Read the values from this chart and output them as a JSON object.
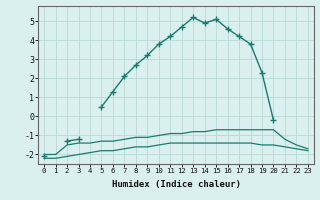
{
  "xlabel": "Humidex (Indice chaleur)",
  "x": [
    0,
    1,
    2,
    3,
    4,
    5,
    6,
    7,
    8,
    9,
    10,
    11,
    12,
    13,
    14,
    15,
    16,
    17,
    18,
    19,
    20,
    21,
    22,
    23
  ],
  "line_max": [
    -2.1,
    null,
    -1.3,
    -1.2,
    null,
    0.5,
    1.3,
    2.1,
    2.7,
    3.2,
    3.8,
    4.2,
    4.7,
    5.2,
    4.9,
    5.1,
    4.6,
    4.2,
    3.8,
    2.3,
    -0.2,
    null,
    null,
    null
  ],
  "line_mean": [
    -2.0,
    -2.0,
    -1.5,
    -1.4,
    -1.4,
    -1.3,
    -1.3,
    -1.2,
    -1.1,
    -1.1,
    -1.0,
    -0.9,
    -0.9,
    -0.8,
    -0.8,
    -0.7,
    -0.7,
    -0.7,
    -0.7,
    -0.7,
    -0.7,
    -1.2,
    -1.5,
    -1.7
  ],
  "line_min": [
    -2.2,
    -2.2,
    -2.1,
    -2.0,
    -1.9,
    -1.8,
    -1.8,
    -1.7,
    -1.6,
    -1.6,
    -1.5,
    -1.4,
    -1.4,
    -1.4,
    -1.4,
    -1.4,
    -1.4,
    -1.4,
    -1.4,
    -1.5,
    -1.5,
    -1.6,
    -1.7,
    -1.8
  ],
  "line_color": "#1a7a6e",
  "bg_color": "#d9f0ee",
  "grid_color": "#b8d8d4",
  "ylim": [
    -2.5,
    5.8
  ],
  "xlim": [
    -0.5,
    23.5
  ],
  "yticks": [
    -2,
    -1,
    0,
    1,
    2,
    3,
    4,
    5
  ],
  "xticks": [
    0,
    1,
    2,
    3,
    4,
    5,
    6,
    7,
    8,
    9,
    10,
    11,
    12,
    13,
    14,
    15,
    16,
    17,
    18,
    19,
    20,
    21,
    22,
    23
  ]
}
